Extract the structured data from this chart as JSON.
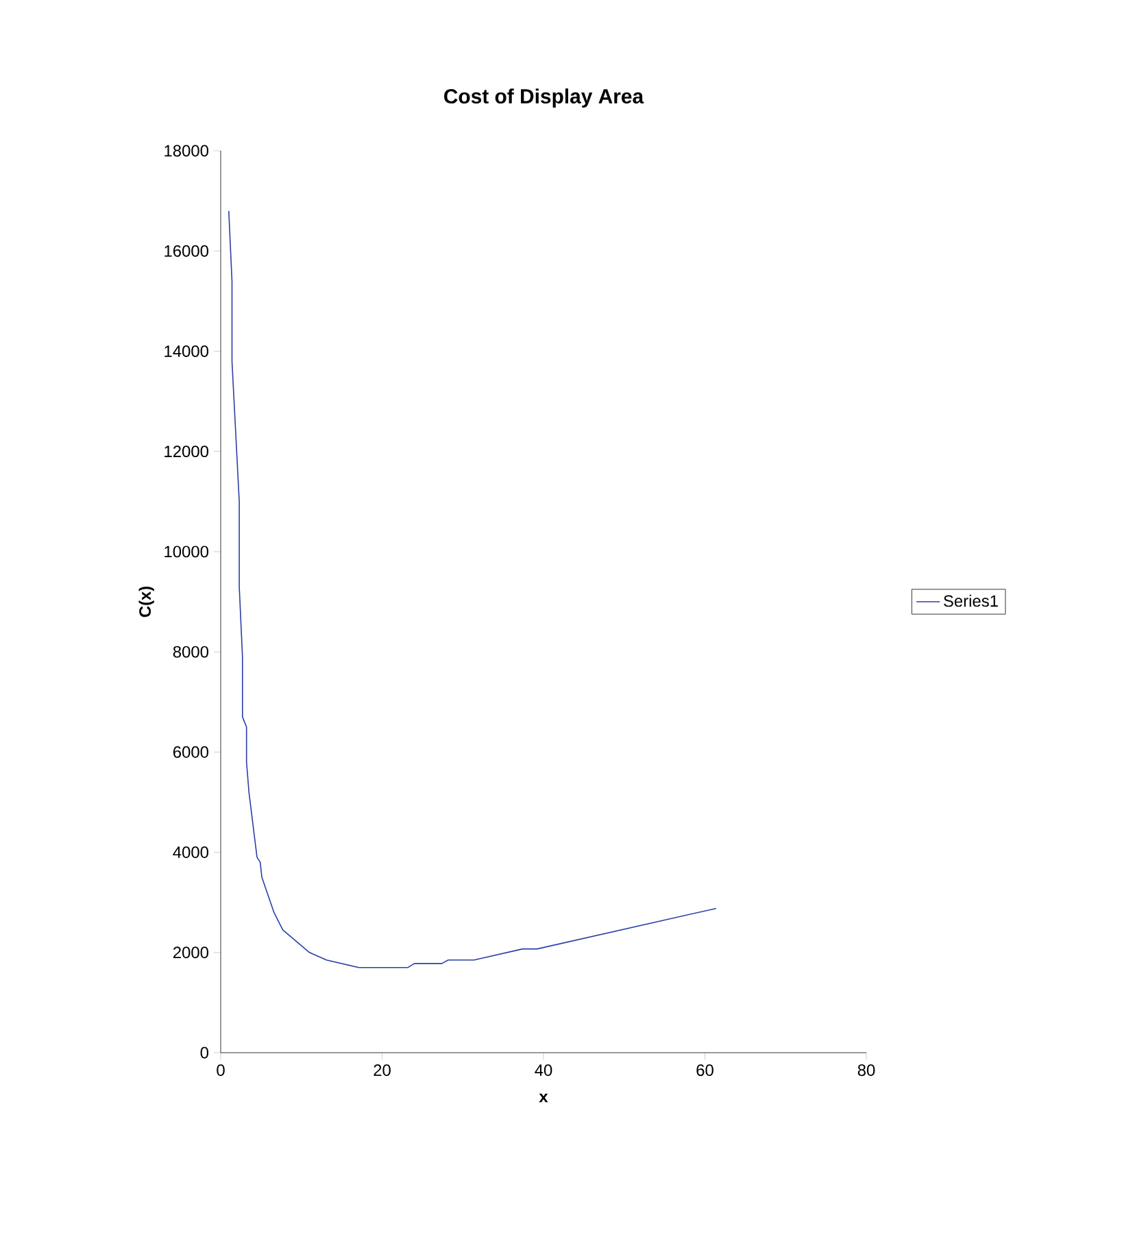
{
  "chart_data": {
    "type": "line",
    "title": "Cost of Display Area",
    "xlabel": "x",
    "ylabel": "C(x)",
    "series": [
      {
        "name": "Series1",
        "color": "#2b3ea8",
        "x": [
          1,
          1.4,
          1.4,
          2.3,
          2.3,
          2.7,
          2.7,
          3.2,
          3.2,
          3.5,
          4.5,
          4.9,
          5.1,
          6.6,
          7.7,
          8.8,
          11,
          13.1,
          17.1,
          23.2,
          24,
          27.4,
          28.2,
          31.4,
          37.4,
          39.2,
          61.4
        ],
        "values": [
          16800,
          15400,
          13800,
          11000,
          9300,
          7900,
          6700,
          6500,
          5800,
          5200,
          3900,
          3800,
          3500,
          2800,
          2450,
          2300,
          2000,
          1850,
          1700,
          1700,
          1780,
          1780,
          1850,
          1850,
          2070,
          2070,
          2880
        ]
      }
    ],
    "xlim": [
      0,
      80
    ],
    "xticks": [
      0,
      20,
      40,
      60,
      80
    ],
    "ylim": [
      0,
      18000
    ],
    "yticks": [
      0,
      2000,
      4000,
      6000,
      8000,
      10000,
      12000,
      14000,
      16000,
      18000
    ],
    "legend": "right",
    "grid": false,
    "marker": "none",
    "line_style": "solid"
  }
}
